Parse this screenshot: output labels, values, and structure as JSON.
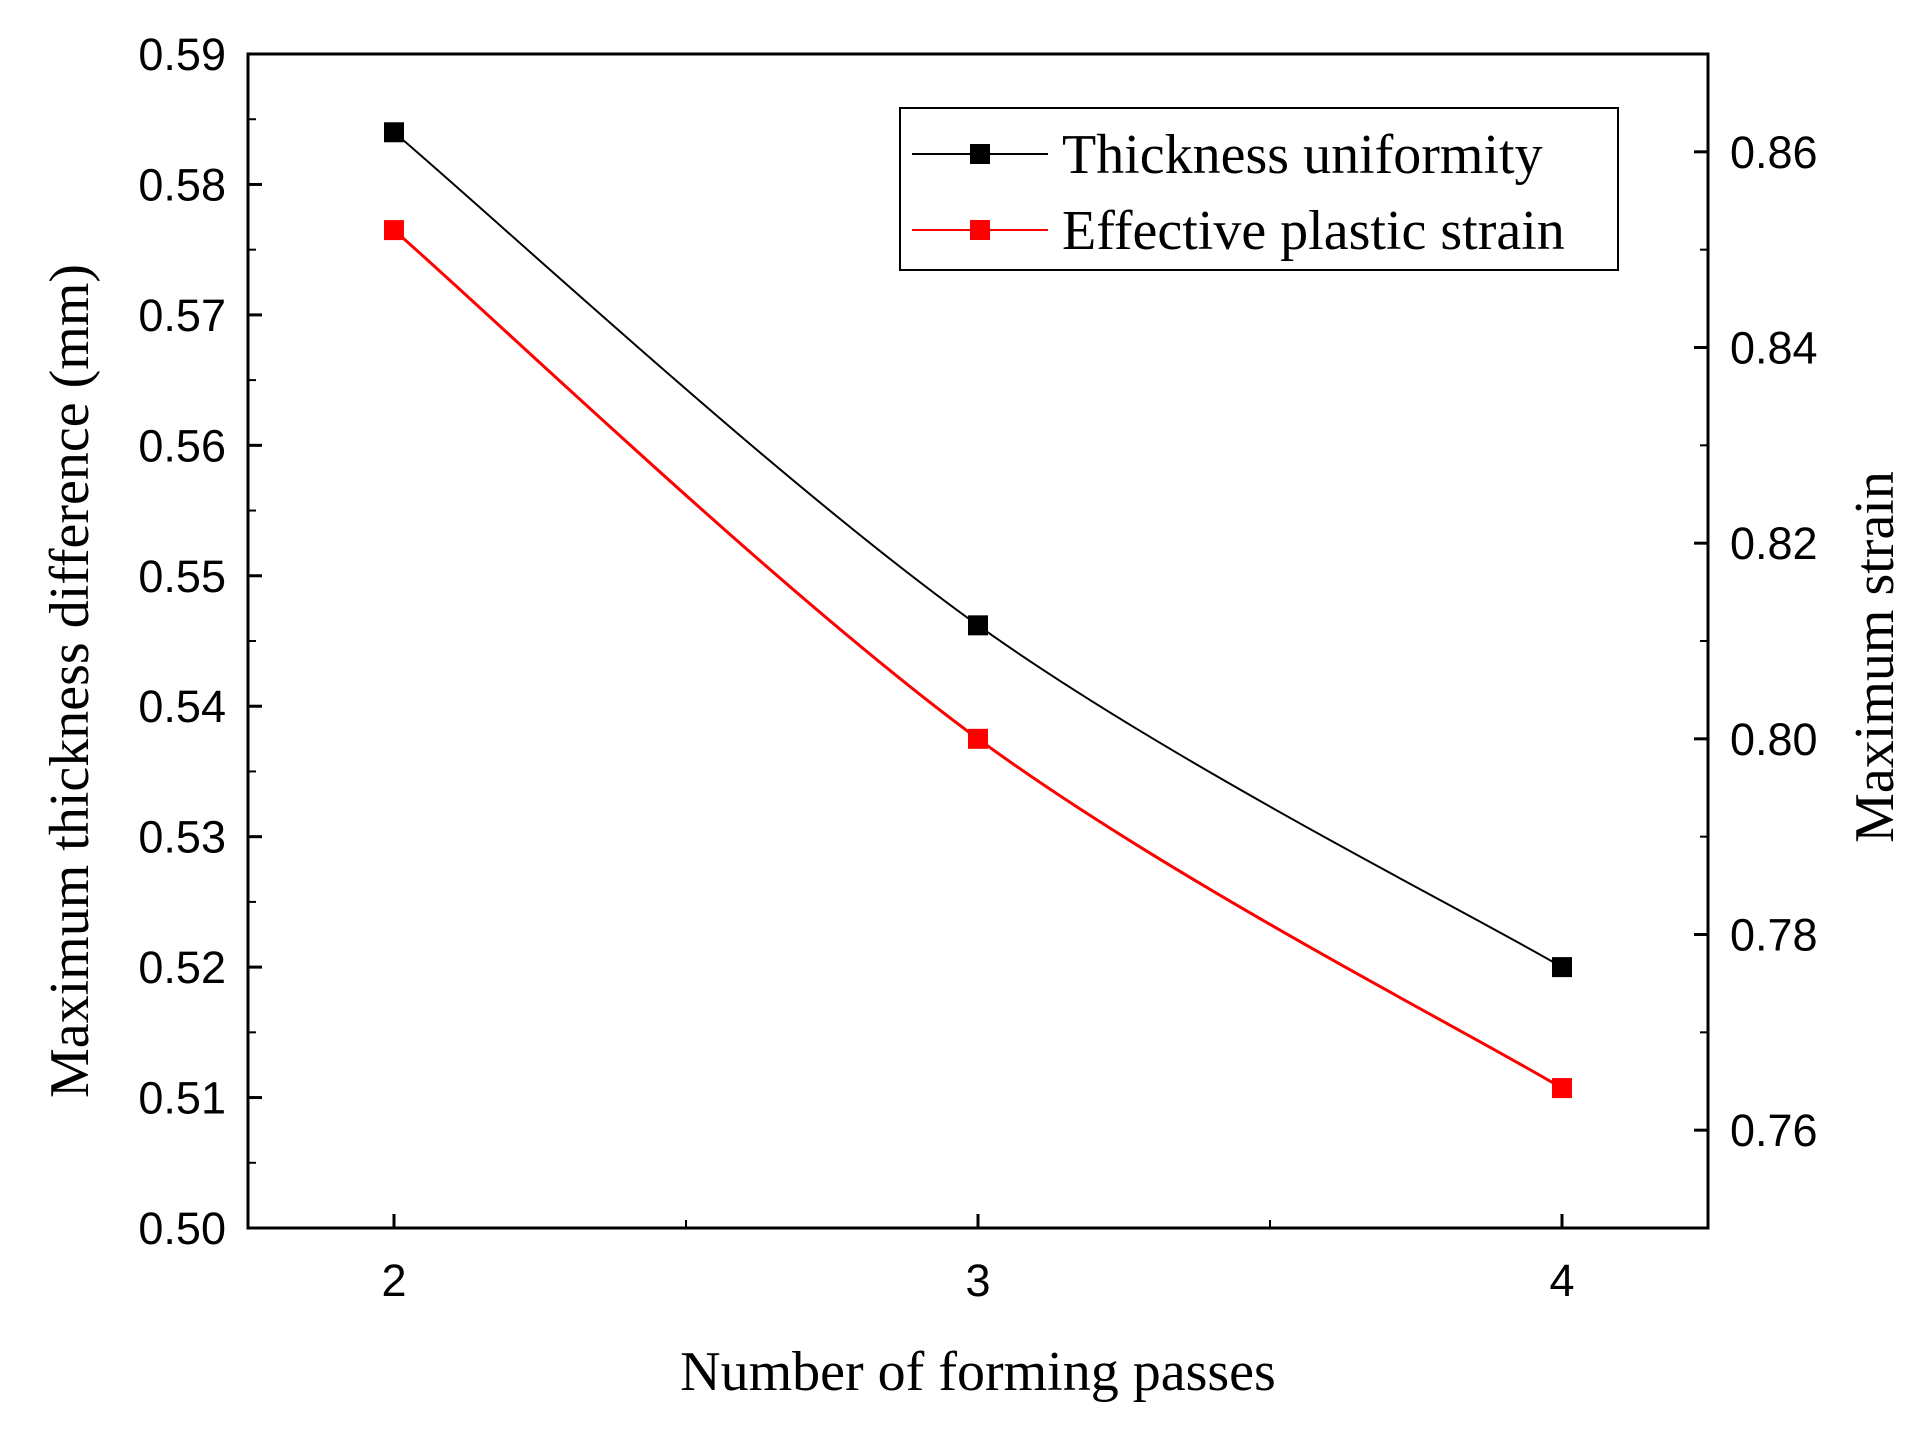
{
  "chart_data": {
    "type": "line",
    "x": [
      2,
      3,
      4
    ],
    "xlim": [
      1.75,
      4.25
    ],
    "x_ticks": [
      2,
      3,
      4
    ],
    "x_tick_labels": [
      "2",
      "3",
      "4"
    ],
    "xlabel": "Number of forming passes",
    "ylabel": "Maximum thickness difference (mm)",
    "ylim": [
      0.5,
      0.59
    ],
    "y_ticks": [
      0.5,
      0.51,
      0.52,
      0.53,
      0.54,
      0.55,
      0.56,
      0.57,
      0.58,
      0.59
    ],
    "y_tick_labels": [
      "0.50",
      "0.51",
      "0.52",
      "0.53",
      "0.54",
      "0.55",
      "0.56",
      "0.57",
      "0.58",
      "0.59"
    ],
    "y2label": "Maximum strain",
    "y2lim": [
      0.75,
      0.87
    ],
    "y2_ticks": [
      0.76,
      0.78,
      0.8,
      0.82,
      0.84,
      0.86
    ],
    "y2_tick_labels": [
      "0.76",
      "0.78",
      "0.80",
      "0.82",
      "0.84",
      "0.86"
    ],
    "series": [
      {
        "name": "Thickness uniformity",
        "axis": "left",
        "color": "#000000",
        "values": [
          0.584,
          0.5462,
          0.52
        ]
      },
      {
        "name": "Effective plastic strain",
        "axis": "right",
        "color": "#ff0000",
        "values": [
          0.852,
          0.8,
          0.7643
        ]
      }
    ],
    "legend_position": "top-right"
  }
}
